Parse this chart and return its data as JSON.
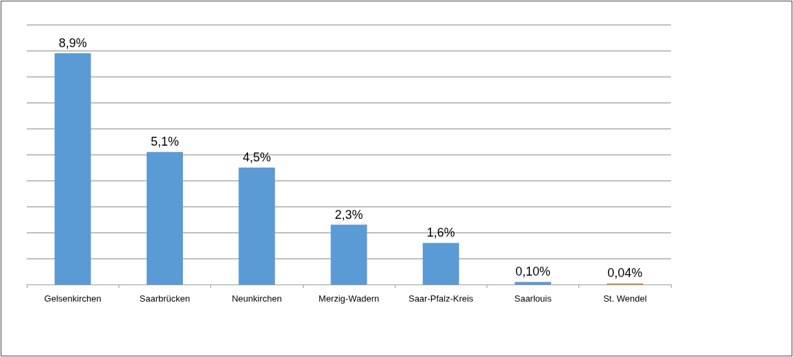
{
  "chart_data": {
    "type": "bar",
    "categories": [
      "Gelsenkirchen",
      "Saarbrücken",
      "Neunkirchen",
      "Merzig-Wadern",
      "Saar-Pfalz-Kreis",
      "Saarlouis",
      "St. Wendel"
    ],
    "values": [
      8.9,
      5.1,
      4.5,
      2.3,
      1.6,
      0.1,
      0.04
    ],
    "colors": [
      "#5b9bd5",
      "#5b9bd5",
      "#5b9bd5",
      "#5b9bd5",
      "#5b9bd5",
      "#5b9bd5",
      "#ed7d31"
    ],
    "value_labels": [
      "8,9%",
      "5,1%",
      "4,5%",
      "2,3%",
      "1,6%",
      "0,10%",
      "0,04%"
    ],
    "ylim": [
      0,
      10
    ],
    "yticks": [
      {
        "value": 0,
        "label": null
      },
      {
        "value": 1,
        "label": null
      },
      {
        "value": 2,
        "label": null
      },
      {
        "value": 3,
        "label": null
      },
      {
        "value": 4,
        "label": null
      },
      {
        "value": 5,
        "label": null
      },
      {
        "value": 6,
        "label": null
      },
      {
        "value": 7,
        "label": null
      },
      {
        "value": 8,
        "label": null
      },
      {
        "value": 9,
        "label": null
      },
      {
        "value": 10,
        "label": null
      }
    ],
    "tick_labels": "x",
    "grid": "y"
  }
}
